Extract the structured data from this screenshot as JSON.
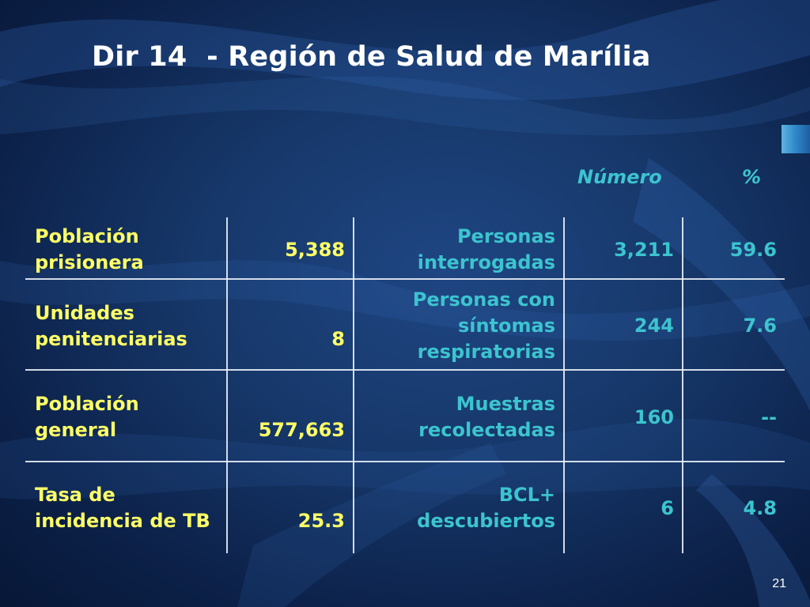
{
  "slide": {
    "title": "Dir 14  - Región de Salud de Marília",
    "slide_number": "21"
  },
  "table": {
    "col_headers": {
      "numero": "Número",
      "percent": "%"
    },
    "rows": [
      {
        "label": "Población\nprisionera",
        "value": "5,388",
        "indicator": "Personas\ninterrogadas",
        "numero": "3,211",
        "percent": "59.6"
      },
      {
        "label": "Unidades\npenitenciarias",
        "value": "8",
        "indicator": "Personas con\nsíntomas\nrespiratorias",
        "numero": "244",
        "percent": "7.6"
      },
      {
        "label": "Población\ngeneral",
        "value": "577,663",
        "indicator": "Muestras\nrecolectadas",
        "numero": "160",
        "percent": "--"
      },
      {
        "label": "Tasa de\nincidencia de TB",
        "value": "25.3",
        "indicator": "BCL+\ndescubiertos",
        "numero": "6",
        "percent": "4.8"
      }
    ]
  },
  "colors": {
    "label_text": "#ffff66",
    "indicator_text": "#3cc4cf",
    "title_text": "#ffffff"
  }
}
